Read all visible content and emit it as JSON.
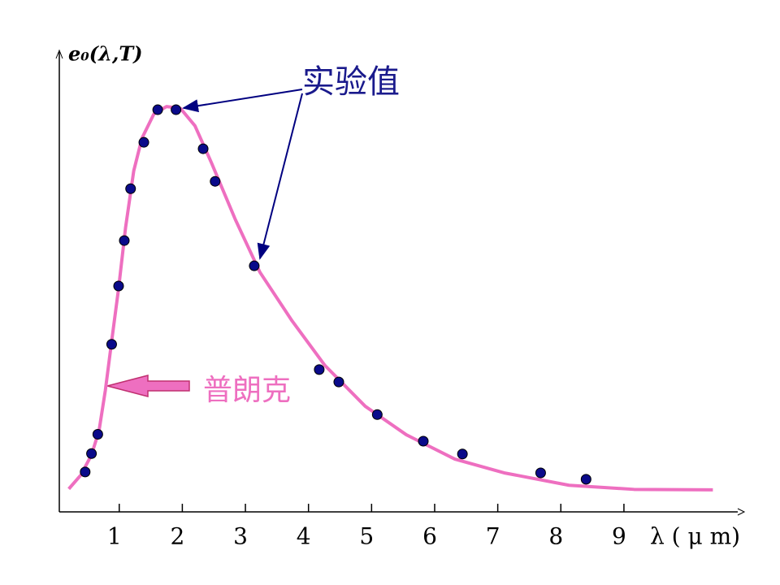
{
  "chart_data": {
    "type": "line",
    "y_label": "e₀(λ,T)",
    "x_label": "λ ( μ m)",
    "annotations": [
      "实验值",
      "普朗克"
    ],
    "xlim": [
      0.05,
      10.83
    ],
    "ylim": [
      0,
      100
    ],
    "xticks": [
      1,
      2,
      3,
      4,
      5,
      6,
      7,
      8,
      9
    ],
    "series": [
      {
        "type": "line",
        "color": "#ee6fc0",
        "x": [
          0.2,
          0.39,
          0.56,
          0.68,
          0.78,
          0.88,
          0.99,
          1.1,
          1.23,
          1.36,
          1.55,
          1.75,
          1.97,
          2.2,
          2.46,
          2.84,
          3.23,
          3.74,
          4.26,
          4.9,
          5.55,
          6.32,
          7.1,
          8.13,
          9.16,
          10.41
        ],
        "values": [
          5.0,
          8.0,
          12.4,
          17.7,
          26.5,
          37.2,
          48.7,
          61.9,
          74.3,
          81.4,
          86.7,
          88.3,
          87.9,
          84.1,
          76.1,
          63.7,
          52.2,
          41.6,
          31.9,
          23.0,
          16.8,
          11.5,
          8.5,
          5.8,
          4.9,
          4.8
        ]
      },
      {
        "type": "scatter",
        "color": "#0a0a8a",
        "x": [
          0.46,
          0.56,
          0.66,
          0.88,
          0.99,
          1.08,
          1.18,
          1.39,
          1.61,
          1.9,
          2.33,
          2.52,
          3.14,
          4.17,
          4.48,
          5.09,
          5.82,
          6.44,
          7.68,
          8.4
        ],
        "values": [
          8.7,
          12.7,
          16.9,
          36.5,
          49.2,
          59.1,
          70.4,
          80.5,
          87.6,
          87.6,
          79.1,
          72.0,
          53.6,
          31.0,
          28.3,
          21.2,
          15.4,
          12.6,
          8.5,
          7.1
        ]
      }
    ]
  }
}
